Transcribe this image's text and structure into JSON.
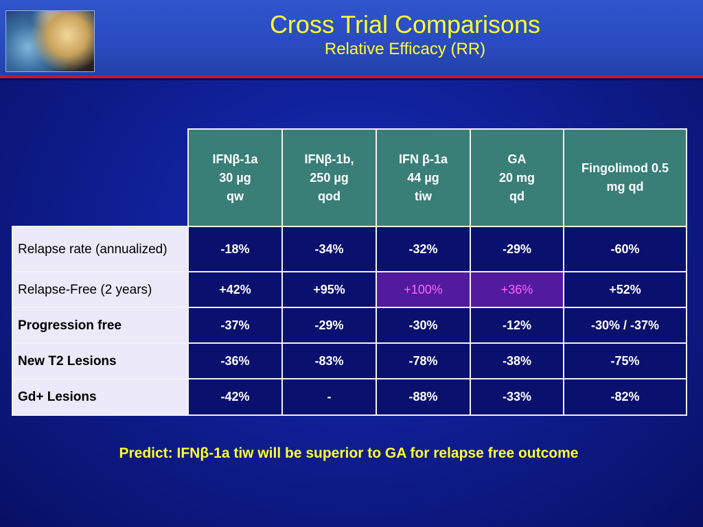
{
  "slide": {
    "title": "Cross Trial Comparisons",
    "subtitle": "Relative Efficacy (RR)",
    "logo_icon": "brain-illustration-logo",
    "footer_note": "Predict: IFNβ-1a tiw will be superior to GA for relapse free outcome"
  },
  "colors": {
    "background": "#1020a0",
    "header": "#2a4bbf",
    "title_yellow": "#ffff33",
    "header_cell": "#3a7e78",
    "row_label_cell": "#ece9f8",
    "data_cell": "#0a106e",
    "highlight_cell": "#521a9e",
    "highlight_text": "#ff66ff",
    "rule_red": "#d2141c"
  },
  "table": {
    "columns": [
      {
        "line1": "IFNβ-1a",
        "line2": "30 µg",
        "line3": "qw"
      },
      {
        "line1": "IFNβ-1b,",
        "line2": "250 µg",
        "line3": "qod"
      },
      {
        "line1": "IFN β-1a",
        "line2": "44 µg",
        "line3": "tiw"
      },
      {
        "line1": "GA",
        "line2": "20 mg",
        "line3": "qd"
      },
      {
        "line1": "Fingolimod 0.5",
        "line2": "mg qd",
        "line3": ""
      }
    ],
    "rows": [
      {
        "label": "Relapse rate (annualized)",
        "values": [
          "-18%",
          "-34%",
          "-32%",
          "-29%",
          "-60%"
        ]
      },
      {
        "label": "Relapse-Free (2 years)",
        "values": [
          "+42%",
          "+95%",
          "+100%",
          "+36%",
          "+52%"
        ],
        "highlighted_columns": [
          2,
          3
        ]
      },
      {
        "label": "Progression free",
        "values": [
          "-37%",
          "-29%",
          "-30%",
          "-12%",
          "-30% / -37%"
        ]
      },
      {
        "label": "New T2 Lesions",
        "values": [
          "-36%",
          "-83%",
          "-78%",
          "-38%",
          "-75%"
        ]
      },
      {
        "label": "Gd+ Lesions",
        "values": [
          "-42%",
          "-",
          "-88%",
          "-33%",
          "-82%"
        ]
      }
    ]
  }
}
